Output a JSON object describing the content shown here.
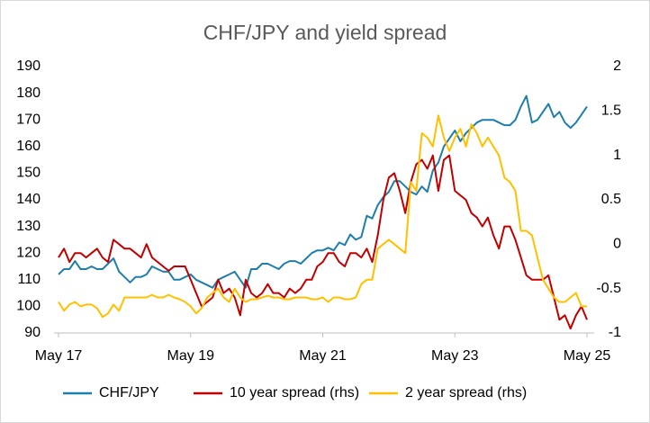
{
  "chart_data": {
    "type": "line",
    "title": "CHF/JPY and yield spread",
    "categories": [
      "May 17",
      null,
      null,
      null,
      null,
      null,
      null,
      null,
      null,
      null,
      null,
      null,
      null,
      null,
      null,
      null,
      null,
      null,
      null,
      null,
      null,
      null,
      null,
      null,
      "May 19",
      null,
      null,
      null,
      null,
      null,
      null,
      null,
      null,
      null,
      null,
      null,
      null,
      null,
      null,
      null,
      null,
      null,
      null,
      null,
      null,
      null,
      null,
      null,
      "May 21",
      null,
      null,
      null,
      null,
      null,
      null,
      null,
      null,
      null,
      null,
      null,
      null,
      null,
      null,
      null,
      null,
      null,
      null,
      null,
      null,
      null,
      null,
      null,
      "May 23",
      null,
      null,
      null,
      null,
      null,
      null,
      null,
      null,
      null,
      null,
      null,
      null,
      null,
      null,
      null,
      null,
      null,
      null,
      null,
      null,
      null,
      null,
      null,
      "May 25"
    ],
    "series": [
      {
        "name": "CHF/JPY",
        "color": "#1f7fa8",
        "axis": "y",
        "values": [
          112,
          114,
          114,
          117,
          114,
          114,
          115,
          114,
          114,
          116,
          118,
          113,
          111,
          109,
          111,
          111,
          112,
          115,
          114,
          113,
          113,
          110,
          110,
          111,
          112,
          110,
          109,
          108,
          107,
          110,
          111,
          112,
          113,
          110,
          107,
          114,
          114,
          116,
          116,
          115,
          114,
          116,
          117,
          117,
          116,
          118,
          120,
          121,
          121,
          122,
          121,
          124,
          123,
          127,
          125,
          126,
          134,
          133,
          138,
          141,
          143,
          147,
          147,
          145,
          143,
          142,
          145,
          143,
          151,
          154,
          160,
          163,
          166,
          162,
          165,
          167,
          169,
          170,
          170,
          170,
          169,
          168,
          168,
          170,
          175,
          179,
          169,
          170,
          173,
          176,
          171,
          173,
          169,
          167,
          169,
          172,
          175
        ]
      },
      {
        "name": "10 year spread (rhs)",
        "color": "#c00000",
        "axis": "y2",
        "values": [
          -0.15,
          -0.05,
          -0.2,
          -0.1,
          -0.1,
          -0.15,
          -0.1,
          -0.05,
          -0.15,
          -0.2,
          0.05,
          0.0,
          -0.05,
          -0.05,
          -0.1,
          -0.15,
          0.0,
          -0.15,
          -0.2,
          -0.25,
          -0.3,
          -0.25,
          -0.25,
          -0.25,
          -0.4,
          -0.55,
          -0.7,
          -0.65,
          -0.6,
          -0.4,
          -0.55,
          -0.5,
          -0.6,
          -0.8,
          -0.4,
          -0.55,
          -0.6,
          -0.55,
          -0.45,
          -0.55,
          -0.55,
          -0.6,
          -0.5,
          -0.55,
          -0.5,
          -0.4,
          -0.4,
          -0.25,
          -0.2,
          -0.1,
          -0.1,
          -0.2,
          -0.25,
          -0.1,
          -0.1,
          -0.15,
          -0.05,
          -0.2,
          0.1,
          0.5,
          0.75,
          0.8,
          0.6,
          0.35,
          0.7,
          0.9,
          0.95,
          0.85,
          1.0,
          0.6,
          0.95,
          1.0,
          0.6,
          0.55,
          0.5,
          0.35,
          0.3,
          0.2,
          0.3,
          0.1,
          -0.05,
          0.2,
          0.2,
          0.05,
          -0.15,
          -0.35,
          -0.4,
          -0.4,
          -0.4,
          -0.35,
          -0.6,
          -0.85,
          -0.8,
          -0.95,
          -0.8,
          -0.7,
          -0.85
        ]
      },
      {
        "name": "2 year spread (rhs)",
        "color": "#ffc000",
        "axis": "y2",
        "values": [
          -0.65,
          -0.75,
          -0.68,
          -0.65,
          -0.7,
          -0.68,
          -0.68,
          -0.72,
          -0.82,
          -0.78,
          -0.68,
          -0.75,
          -0.6,
          -0.6,
          -0.6,
          -0.6,
          -0.6,
          -0.57,
          -0.6,
          -0.6,
          -0.57,
          -0.6,
          -0.62,
          -0.65,
          -0.7,
          -0.78,
          -0.72,
          -0.6,
          -0.55,
          -0.5,
          -0.6,
          -0.65,
          -0.5,
          -0.6,
          -0.65,
          -0.62,
          -0.62,
          -0.6,
          -0.58,
          -0.6,
          -0.6,
          -0.62,
          -0.62,
          -0.6,
          -0.6,
          -0.6,
          -0.62,
          -0.62,
          -0.6,
          -0.65,
          -0.6,
          -0.6,
          -0.62,
          -0.62,
          -0.6,
          -0.45,
          -0.4,
          -0.4,
          -0.05,
          0.0,
          0.05,
          0.0,
          -0.05,
          -0.1,
          0.7,
          0.6,
          1.25,
          1.2,
          1.1,
          1.45,
          1.2,
          1.05,
          1.2,
          1.3,
          1.1,
          1.35,
          1.25,
          1.1,
          1.2,
          1.1,
          1.0,
          0.75,
          0.7,
          0.6,
          0.15,
          0.15,
          0.1,
          -0.15,
          -0.4,
          -0.5,
          -0.6,
          -0.65,
          -0.65,
          -0.6,
          -0.55,
          -0.7,
          -0.7
        ]
      }
    ],
    "ylim": [
      90,
      190
    ],
    "yticks": [
      90,
      100,
      110,
      120,
      130,
      140,
      150,
      160,
      170,
      180,
      190
    ],
    "y2lim": [
      -1,
      2
    ],
    "y2ticks": [
      -1,
      -0.5,
      0,
      0.5,
      1,
      1.5,
      2
    ],
    "grid": false,
    "legend": "bottom"
  }
}
